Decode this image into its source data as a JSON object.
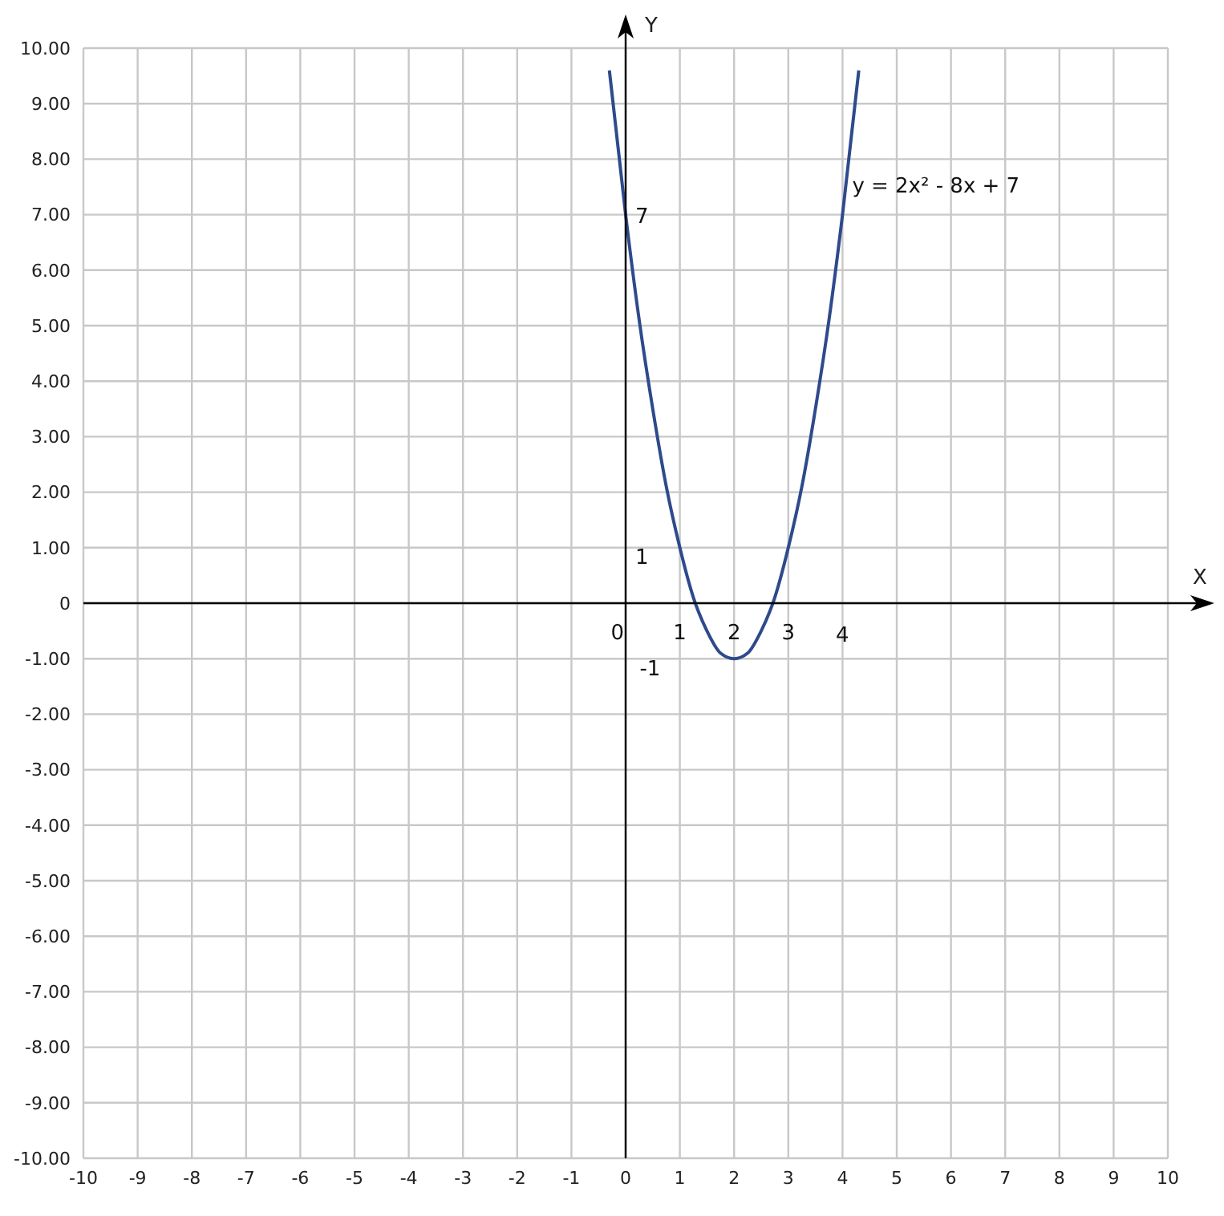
{
  "chart_data": {
    "type": "line",
    "xlabel": "X",
    "ylabel": "Y",
    "xlim": [
      -10,
      10
    ],
    "ylim": [
      -10,
      10
    ],
    "xticks": [
      -10,
      -9,
      -8,
      -7,
      -6,
      -5,
      -4,
      -3,
      -2,
      -1,
      0,
      1,
      2,
      3,
      4,
      5,
      6,
      7,
      8,
      9,
      10
    ],
    "yticks": [
      {
        "value": -10,
        "label": "-10.00"
      },
      {
        "value": -9,
        "label": "-9.00"
      },
      {
        "value": -8,
        "label": "-8.00"
      },
      {
        "value": -7,
        "label": "-7.00"
      },
      {
        "value": -6,
        "label": "-6.00"
      },
      {
        "value": -5,
        "label": "-5.00"
      },
      {
        "value": -4,
        "label": "-4.00"
      },
      {
        "value": -3,
        "label": "-3.00"
      },
      {
        "value": -2,
        "label": "-2.00"
      },
      {
        "value": -1,
        "label": "-1.00"
      },
      0,
      {
        "value": 1,
        "label": "1.00"
      },
      {
        "value": 2,
        "label": "2.00"
      },
      {
        "value": 3,
        "label": "3.00"
      },
      {
        "value": 4,
        "label": "4.00"
      },
      {
        "value": 5,
        "label": "5.00"
      },
      {
        "value": 6,
        "label": "6.00"
      },
      {
        "value": 7,
        "label": "7.00"
      },
      {
        "value": 8,
        "label": "8.00"
      },
      {
        "value": 9,
        "label": "9.00"
      },
      {
        "value": 10,
        "label": "10.00"
      }
    ],
    "grid": true,
    "marker": "none",
    "line_style": "solid",
    "series": [
      {
        "color": "#2e4a8c",
        "x": [
          -0.3,
          0,
          0.25,
          0.5,
          0.75,
          1,
          1.25,
          1.5,
          1.75,
          2,
          2.25,
          2.5,
          2.75,
          3,
          3.25,
          3.5,
          3.75,
          4,
          4.3
        ],
        "values": [
          9.6,
          7,
          5.1,
          3.5,
          2.1,
          1,
          0.1,
          -0.5,
          -0.9,
          -1,
          -0.9,
          -0.5,
          0.1,
          1,
          2.1,
          3.5,
          5.1,
          7,
          9.6
        ]
      }
    ],
    "annotations": [
      {
        "text": "7",
        "x": 0,
        "y": 7
      },
      "1",
      "-1",
      "0",
      "1",
      "2",
      "3",
      "4",
      {
        "text": "y = 2x² - 8x + 7",
        "x": 4,
        "y": 7
      }
    ]
  }
}
